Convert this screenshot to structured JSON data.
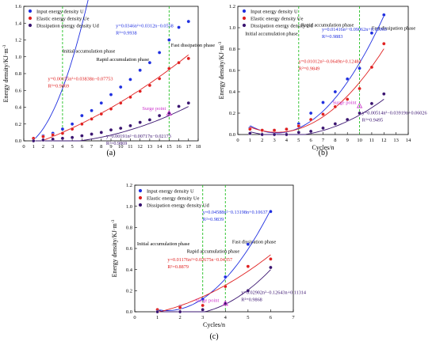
{
  "colors": {
    "input": "#1f2fe0",
    "elastic": "#e02020",
    "dissipation": "#3a1470",
    "phase_line": "#22c022",
    "surge": "#cc33cc",
    "axis": "#000000"
  },
  "chart_data": [
    {
      "type": "scatter",
      "panel_label": "(a)",
      "xlabel": "",
      "ylabel": "Energy density/KJ·m",
      "ylabel_sup": "-3",
      "xlim": [
        0,
        18
      ],
      "ylim": [
        0,
        1.6
      ],
      "xticks": [
        0,
        1,
        2,
        3,
        4,
        5,
        6,
        7,
        8,
        9,
        10,
        11,
        12,
        13,
        14,
        15,
        16,
        17,
        18
      ],
      "yticks": [
        0.0,
        0.2,
        0.4,
        0.6,
        0.8,
        1.0,
        1.2,
        1.4,
        1.6
      ],
      "legend": [
        "Input energy density U",
        "Elastic energy density Ue",
        "Dissipation energy density Ud"
      ],
      "phase_lines": [
        4,
        15
      ],
      "phases": [
        "Initial accumulation phase",
        "Rapid accumulation phase",
        "Fast dissipation phase"
      ],
      "surge_label": "Surge point",
      "surge_point": {
        "x": 15,
        "y": 0.33
      },
      "series": [
        {
          "key": "input",
          "x": [
            1,
            2,
            3,
            4,
            5,
            6,
            7,
            8,
            9,
            10,
            11,
            12,
            13,
            14,
            15,
            16,
            17
          ],
          "y": [
            0.03,
            0.06,
            0.09,
            0.14,
            0.2,
            0.3,
            0.36,
            0.45,
            0.55,
            0.64,
            0.73,
            0.84,
            0.93,
            1.05,
            1.2,
            1.35,
            1.42
          ],
          "fit": [
            0.0346,
            0.0312,
            -0.0558
          ],
          "equation": "y=0.0346n²+0.0312n−0.0558",
          "r2": "R²=0.9938"
        },
        {
          "key": "elastic",
          "x": [
            1,
            2,
            3,
            4,
            5,
            6,
            7,
            8,
            9,
            10,
            11,
            12,
            13,
            14,
            15,
            16,
            17
          ],
          "y": [
            0.03,
            0.05,
            0.07,
            0.09,
            0.14,
            0.2,
            0.26,
            0.32,
            0.38,
            0.45,
            0.52,
            0.59,
            0.66,
            0.74,
            0.86,
            0.93,
            0.98
          ],
          "fit": [
            0.00155,
            0.03838,
            -0.07753
          ],
          "equation": "y=0.00155n²+0.03838n−0.07753",
          "r2": "R²=0.9869"
        },
        {
          "key": "dissipation",
          "x": [
            1,
            2,
            3,
            4,
            5,
            6,
            7,
            8,
            9,
            10,
            11,
            12,
            13,
            14,
            15,
            16,
            17
          ],
          "y": [
            0.0,
            0.01,
            0.02,
            0.03,
            0.04,
            0.06,
            0.08,
            0.1,
            0.13,
            0.15,
            0.18,
            0.22,
            0.25,
            0.3,
            0.33,
            0.41,
            0.45
          ],
          "fit": [
            0.00191,
            -0.00717,
            -0.02173
          ],
          "equation": "y=0.00191n²−0.00717n−0.02173",
          "r2": "R²=0.9869"
        }
      ]
    },
    {
      "type": "scatter",
      "panel_label": "(b)",
      "xlabel": "Cycles/n",
      "ylabel": "Energy density/KJ·m",
      "ylabel_sup": "-3",
      "xlim": [
        0,
        14
      ],
      "ylim": [
        0,
        1.2
      ],
      "xticks": [
        0,
        1,
        2,
        3,
        4,
        5,
        6,
        7,
        8,
        9,
        10,
        11,
        12,
        13,
        14
      ],
      "yticks": [
        0.0,
        0.2,
        0.4,
        0.6,
        0.8,
        1.0,
        1.2
      ],
      "legend": [
        "Input energy density U",
        "Elastic energy density Ue",
        "Dissipation energy density Ud"
      ],
      "phase_lines": [
        5,
        10
      ],
      "phases": [
        "Initial accumulation phase",
        "Rapid accumulation phase",
        "Fast dissipation phase"
      ],
      "surge_label": "Surge point",
      "surge_point": {
        "x": 10,
        "y": 0.27
      },
      "series": [
        {
          "key": "input",
          "x": [
            1,
            2,
            3,
            4,
            5,
            6,
            7,
            8,
            9,
            10,
            11,
            12
          ],
          "y": [
            0.06,
            0.04,
            0.04,
            0.05,
            0.1,
            0.2,
            0.3,
            0.4,
            0.52,
            0.62,
            0.95,
            1.12
          ],
          "fit": [
            0.01416,
            -0.09062,
            0.15965
          ],
          "equation": "y=0.01416n²−0.09062n+0.15965",
          "r2": "R²=0.9883"
        },
        {
          "key": "elastic",
          "x": [
            1,
            2,
            3,
            4,
            5,
            6,
            7,
            8,
            9,
            10,
            11,
            12
          ],
          "y": [
            0.05,
            0.04,
            0.04,
            0.05,
            0.08,
            0.14,
            0.19,
            0.26,
            0.33,
            0.43,
            0.63,
            0.85
          ],
          "fit": [
            0.01012,
            -0.0649,
            0.12484
          ],
          "equation": "y=0.01012n²−0.0649n+0.12484",
          "r2": "R²=0.9849"
        },
        {
          "key": "dissipation",
          "x": [
            1,
            2,
            3,
            4,
            5,
            6,
            7,
            8,
            9,
            10,
            11,
            12
          ],
          "y": [
            0.01,
            0.0,
            0.0,
            0.0,
            0.02,
            0.03,
            0.06,
            0.1,
            0.14,
            0.2,
            0.29,
            0.38
          ],
          "fit": [
            0.00514,
            -0.03919,
            0.06026
          ],
          "equation": "y=0.00514n²−0.03919n+0.06026",
          "r2": "R²=0.9495"
        }
      ]
    },
    {
      "type": "scatter",
      "panel_label": "(c)",
      "xlabel": "Cycles/n",
      "ylabel": "Energy density/KJ·m",
      "ylabel_sup": "-3",
      "xlim": [
        0,
        7
      ],
      "ylim": [
        0,
        1.2
      ],
      "xticks": [
        0,
        1,
        2,
        3,
        4,
        5,
        6,
        7
      ],
      "yticks": [
        0.0,
        0.2,
        0.4,
        0.6,
        0.8,
        1.0,
        1.2
      ],
      "legend": [
        "Input energy density U",
        "Elastic energy density Ue",
        "Dissipation energy density Ud"
      ],
      "phase_lines": [
        3,
        4
      ],
      "phases": [
        "Initial accumulation phase",
        "Rapid accumulation phase",
        "Fast dissipation phase"
      ],
      "surge_label": "Surge point",
      "surge_point": {
        "x": 4,
        "y": 0.08
      },
      "series": [
        {
          "key": "input",
          "x": [
            1,
            2,
            3,
            4,
            5,
            6
          ],
          "y": [
            0.02,
            0.05,
            0.12,
            0.33,
            0.64,
            0.95
          ],
          "fit": [
            0.04588,
            -0.13198,
            0.10637
          ],
          "equation": "y=0.04588n²−0.13198n+0.10637",
          "r2": "R²=0.9839"
        },
        {
          "key": "elastic",
          "x": [
            1,
            2,
            3,
            4,
            5,
            6
          ],
          "y": [
            0.02,
            0.04,
            0.06,
            0.24,
            0.43,
            0.5
          ],
          "fit": [
            0.01176,
            0.02675,
            -0.04357
          ],
          "equation": "y=0.01176n²+0.02675n−0.04357",
          "r2": "R²=0.8879"
        },
        {
          "key": "dissipation",
          "x": [
            1,
            2,
            3,
            4,
            5,
            6
          ],
          "y": [
            0.0,
            0.0,
            0.02,
            0.08,
            0.2,
            0.42
          ],
          "fit": [
            0.02902,
            -0.12643,
            0.11314
          ],
          "equation": "y=0.02902n²−0.12643n+0.11314",
          "r2": "R²=0.9868"
        }
      ]
    }
  ]
}
